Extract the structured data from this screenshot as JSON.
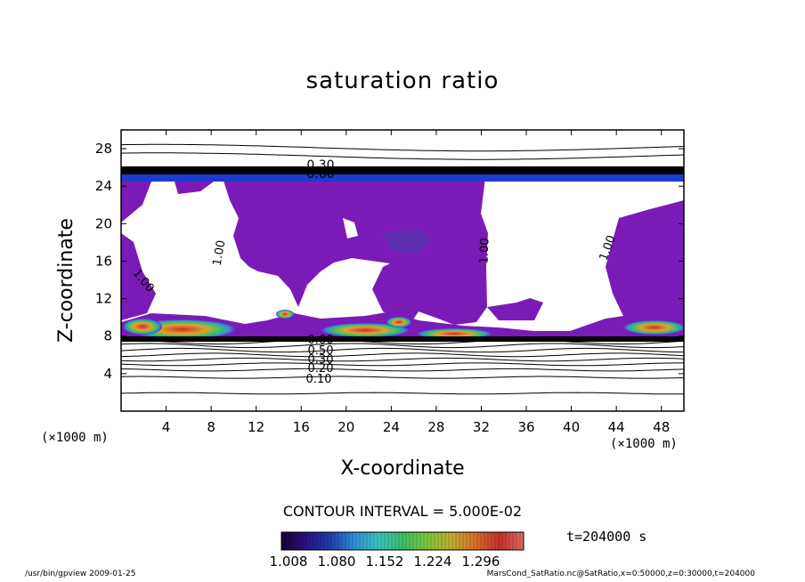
{
  "title": "saturation ratio",
  "footer": {
    "left": "/usr/bin/gpview 2009-01-25",
    "right": "MarsCond_SatRatio.nc@SatRatio,x=0:50000,z=0:30000,t=204000"
  },
  "contour_interval": "CONTOUR INTERVAL = 5.000E-02",
  "time_label": "t=204000 s",
  "x_unit": "(×1000 m)",
  "y_unit": "(×1000 m)",
  "colorbar": {
    "ticks": [
      "1.008",
      "1.080",
      "1.152",
      "1.224",
      "1.296"
    ],
    "colors": [
      "#1a0033",
      "#2a1080",
      "#1f3bb0",
      "#2f8fd8",
      "#39c5c0",
      "#3bbf6a",
      "#7cc83a",
      "#c0b030",
      "#d9702a",
      "#c8302a",
      "#e06a6a"
    ]
  },
  "chart_data": {
    "type": "contour",
    "title": "saturation ratio",
    "xlabel": "X-coordinate",
    "ylabel": "Z-coordinate",
    "xlim": [
      0,
      50
    ],
    "ylim": [
      0,
      30
    ],
    "xticks": [
      4,
      8,
      12,
      16,
      20,
      24,
      28,
      32,
      36,
      40,
      44,
      48
    ],
    "yticks": [
      4,
      8,
      12,
      16,
      20,
      24,
      28
    ],
    "contour_interval": 0.05,
    "contour_labels": [
      "0.10",
      "0.20",
      "0.30",
      "0.40",
      "0.50",
      "0.60",
      "1.00"
    ],
    "lower_contours_z": [
      1.9,
      3.6,
      4.4,
      5.0,
      5.5,
      6.0,
      6.5,
      7.0,
      7.4
    ],
    "upper_contours_z": [
      25.5,
      26.0,
      27.2,
      28.1
    ],
    "colorbar_range": [
      1.008,
      1.296
    ],
    "fill_color": "#7a1bb8"
  }
}
